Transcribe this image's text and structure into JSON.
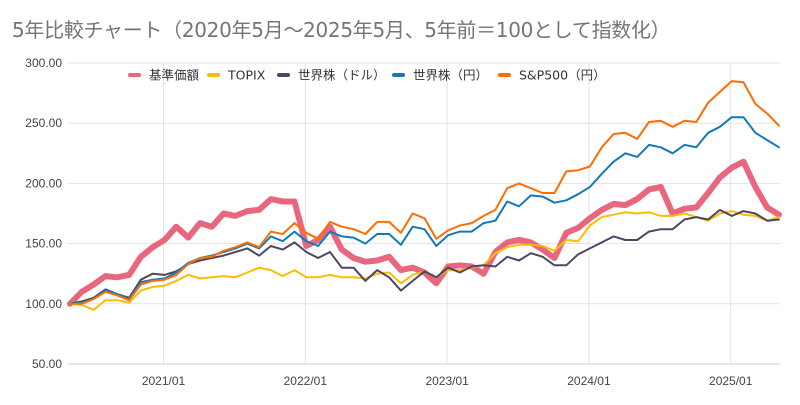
{
  "chart_data": {
    "type": "line",
    "title": "5年比較チャート（2020年5月〜2025年5月、5年前＝100として指数化）",
    "xlabel": "",
    "ylabel": "",
    "ylim": [
      50,
      300
    ],
    "y_ticks": [
      "50.00",
      "100.00",
      "150.00",
      "200.00",
      "250.00",
      "300.00"
    ],
    "y_tick_values": [
      50,
      100,
      150,
      200,
      250,
      300
    ],
    "x_start": "2020/05",
    "x_end": "2025/05",
    "x_ticks": [
      {
        "label": "2021/01",
        "index": 8
      },
      {
        "label": "2022/01",
        "index": 20
      },
      {
        "label": "2023/01",
        "index": 32
      },
      {
        "label": "2024/01",
        "index": 44
      },
      {
        "label": "2025/01",
        "index": 56
      }
    ],
    "grid": true,
    "legend_position": "top",
    "series": [
      {
        "name": "基準価額",
        "color": "#e8677f",
        "emphasis": "thick",
        "values": [
          100,
          110,
          116,
          123,
          122,
          124,
          139,
          147,
          153,
          164,
          155,
          167,
          164,
          175,
          173,
          177,
          178,
          187,
          185,
          185,
          148,
          153,
          164,
          145,
          138,
          135,
          136,
          139,
          128,
          130,
          126,
          117,
          131,
          132,
          131,
          125,
          143,
          151,
          153,
          151,
          145,
          138,
          159,
          163,
          171,
          178,
          183,
          182,
          187,
          195,
          197,
          175,
          179,
          180,
          192,
          205,
          213,
          218,
          197,
          180,
          174
        ]
      },
      {
        "name": "TOPIX",
        "color": "#fbbc04",
        "values": [
          100,
          99,
          95,
          103,
          103,
          101,
          111,
          114,
          115,
          119,
          124,
          121,
          122,
          123,
          122,
          126,
          130,
          128,
          123,
          128,
          122,
          122,
          124,
          122,
          122,
          121,
          125,
          126,
          117,
          124,
          127,
          122,
          128,
          128,
          130,
          132,
          142,
          147,
          149,
          149,
          148,
          144,
          153,
          152,
          165,
          172,
          174,
          176,
          175,
          176,
          173,
          173,
          175,
          172,
          169,
          175,
          177,
          174,
          173,
          169,
          172
        ]
      },
      {
        "name": "世界株（ドル）",
        "color": "#4d4763",
        "values": [
          100,
          102,
          105,
          112,
          108,
          105,
          120,
          125,
          124,
          127,
          133,
          136,
          138,
          140,
          143,
          146,
          140,
          148,
          145,
          151,
          143,
          138,
          143,
          130,
          130,
          119,
          128,
          122,
          111,
          119,
          127,
          122,
          130,
          126,
          131,
          132,
          131,
          139,
          136,
          142,
          139,
          132,
          132,
          141,
          146,
          151,
          156,
          153,
          153,
          160,
          162,
          162,
          170,
          172,
          170,
          178,
          173,
          177,
          175,
          169,
          170
        ]
      },
      {
        "name": "世界株（円）",
        "color": "#1479b8",
        "values": [
          100,
          101,
          104,
          111,
          108,
          104,
          118,
          120,
          121,
          126,
          134,
          138,
          140,
          143,
          146,
          150,
          146,
          156,
          152,
          160,
          152,
          148,
          160,
          156,
          155,
          150,
          158,
          158,
          149,
          164,
          162,
          148,
          157,
          160,
          160,
          167,
          169,
          185,
          181,
          190,
          189,
          184,
          186,
          191,
          197,
          208,
          218,
          225,
          222,
          232,
          230,
          225,
          232,
          230,
          242,
          247,
          255,
          255,
          242,
          236,
          230
        ]
      },
      {
        "name": "S&P500（円）",
        "color": "#ff6d00",
        "values": [
          100,
          100,
          104,
          110,
          107,
          103,
          116,
          119,
          120,
          124,
          133,
          138,
          139,
          144,
          147,
          151,
          147,
          160,
          158,
          167,
          159,
          154,
          168,
          164,
          162,
          158,
          168,
          168,
          159,
          175,
          171,
          154,
          161,
          165,
          167,
          173,
          178,
          196,
          200,
          196,
          192,
          192,
          210,
          211,
          214,
          230,
          241,
          242,
          237,
          251,
          252,
          247,
          252,
          251,
          267,
          276,
          285,
          284,
          266,
          258,
          248
        ]
      }
    ]
  }
}
